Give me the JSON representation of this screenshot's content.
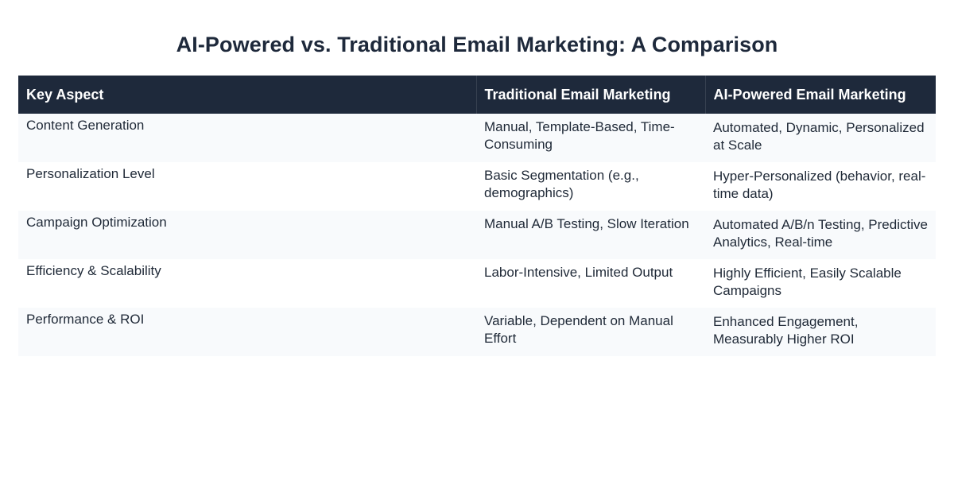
{
  "title": "AI-Powered vs. Traditional Email Marketing: A Comparison",
  "table": {
    "headers": [
      "Key Aspect",
      "Traditional Email Marketing",
      "AI-Powered Email Marketing"
    ],
    "rows": [
      [
        "Content Generation",
        "Manual, Template-Based, Time-Consuming",
        "Automated, Dynamic, Personalized at Scale"
      ],
      [
        "Personalization Level",
        "Basic Segmentation (e.g., demographics)",
        "Hyper-Personalized (behavior, real-time data)"
      ],
      [
        "Campaign Optimization",
        "Manual A/B Testing, Slow Iteration",
        "Automated A/B/n Testing, Predictive Analytics, Real-time"
      ],
      [
        "Efficiency & Scalability",
        "Labor-Intensive, Limited Output",
        "Highly Efficient, Easily Scalable Campaigns"
      ],
      [
        "Performance & ROI",
        "Variable, Dependent on Manual Effort",
        "Enhanced Engagement, Measurably Higher ROI"
      ]
    ]
  },
  "colors": {
    "header_bg": "#1e293b",
    "header_text": "#ffffff",
    "row_alt_bg": "#f8fafc",
    "title_text": "#1e293b"
  }
}
